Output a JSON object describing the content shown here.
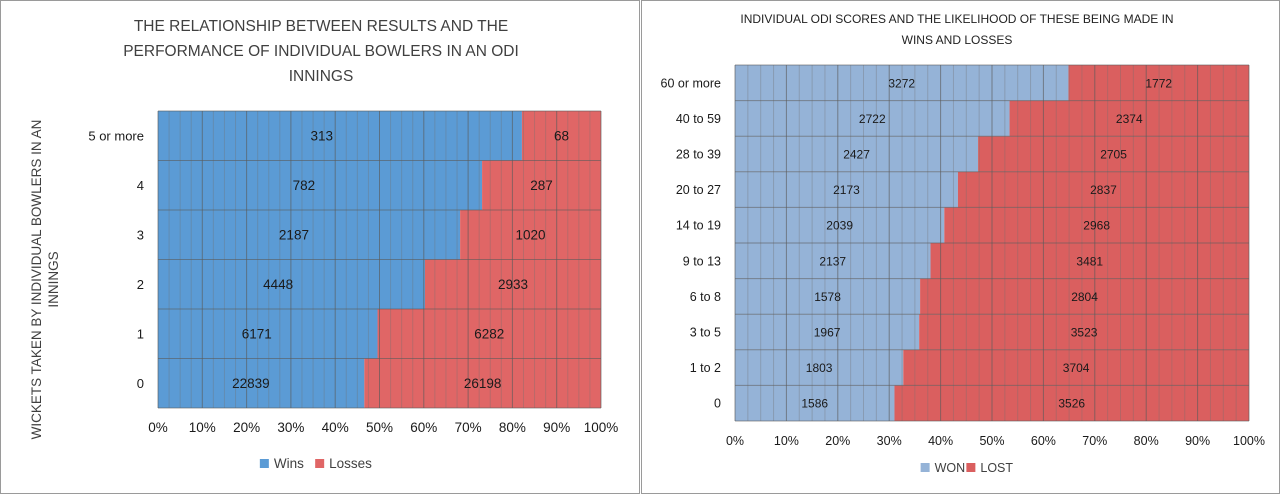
{
  "chart_data": [
    {
      "type": "bar",
      "orientation": "horizontal",
      "stacked": "percent",
      "title_lines": [
        "THE RELATIONSHIP BETWEEN RESULTS AND THE",
        "PERFORMANCE OF INDIVIDUAL BOWLERS IN AN ODI",
        "INNINGS"
      ],
      "ylabel_lines": [
        "WICKETS TAKEN  BY INDIVIDUAL BOWLERS IN AN",
        "INNINGS"
      ],
      "xlabel": "",
      "categories": [
        "0",
        "1",
        "2",
        "3",
        "4",
        "5 or more"
      ],
      "series": [
        {
          "name": "Wins",
          "color": "#5b9bd5",
          "values": [
            22839,
            6171,
            4448,
            2187,
            782,
            313
          ]
        },
        {
          "name": "Losses",
          "color": "#e06666",
          "values": [
            26198,
            6282,
            2933,
            1020,
            287,
            68
          ]
        }
      ],
      "xticks": [
        "0%",
        "10%",
        "20%",
        "30%",
        "40%",
        "50%",
        "60%",
        "70%",
        "80%",
        "90%",
        "100%"
      ],
      "xlim": [
        0,
        100
      ],
      "grid": true,
      "legend": "bottom"
    },
    {
      "type": "bar",
      "orientation": "horizontal",
      "stacked": "percent",
      "title_lines": [
        "INDIVIDUAL ODI SCORES AND THE LIKELIHOOD OF THESE BEING MADE IN",
        "WINS AND LOSSES"
      ],
      "xlabel": "",
      "ylabel": "",
      "categories": [
        "0",
        "1 to 2",
        "3 to 5",
        "6 to 8",
        "9 to 13",
        "14 to 19",
        "20 to 27",
        "28 to 39",
        "40 to 59",
        "60 or more"
      ],
      "series": [
        {
          "name": "WON",
          "color": "#95b3d7",
          "values": [
            1586,
            1803,
            1967,
            1578,
            2137,
            2039,
            2173,
            2427,
            2722,
            3272
          ]
        },
        {
          "name": "LOST",
          "color": "#da5f5f",
          "values": [
            3526,
            3704,
            3523,
            2804,
            3481,
            2968,
            2837,
            2705,
            2374,
            1772
          ]
        }
      ],
      "xticks": [
        "0%",
        "10%",
        "20%",
        "30%",
        "40%",
        "50%",
        "60%",
        "70%",
        "80%",
        "90%",
        "100%"
      ],
      "xlim": [
        0,
        100
      ],
      "grid": true,
      "legend": "bottom"
    }
  ]
}
